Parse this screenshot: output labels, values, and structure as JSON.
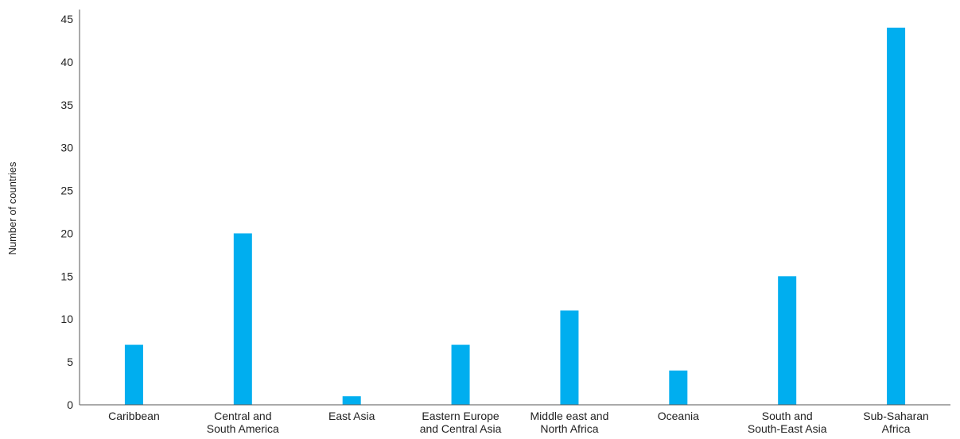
{
  "chart_data": {
    "type": "bar",
    "title": "",
    "xlabel": "",
    "ylabel": "Number of countries",
    "ylim": [
      0,
      45
    ],
    "yticks": [
      0,
      5,
      10,
      15,
      20,
      25,
      30,
      35,
      40,
      45
    ],
    "grid": false,
    "legend": "none",
    "bar_color": "#00AEEF",
    "axis_color": "#555555",
    "categories": [
      [
        "Caribbean"
      ],
      [
        "Central and",
        "South America"
      ],
      [
        "East Asia"
      ],
      [
        "Eastern Europe",
        "and Central Asia"
      ],
      [
        "Middle east and",
        "North Africa"
      ],
      [
        "Oceania"
      ],
      [
        "South and",
        "South-East Asia"
      ],
      [
        "Sub-Saharan",
        "Africa"
      ]
    ],
    "values": [
      7,
      20,
      1,
      7,
      11,
      4,
      15,
      44
    ]
  }
}
